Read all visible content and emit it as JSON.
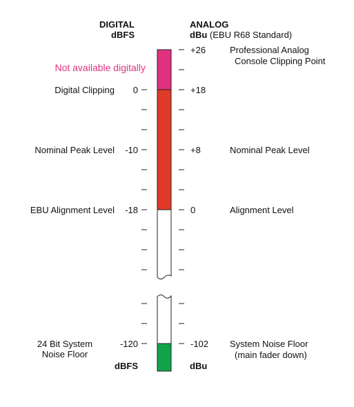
{
  "headers": {
    "digital_title": "DIGITAL",
    "digital_unit": "dBFS",
    "analog_title": "ANALOG",
    "analog_unit": "dBu",
    "analog_standard": "(EBU R68 Standard)"
  },
  "left_labels": {
    "not_available": "Not available digitally",
    "digital_clipping": "Digital Clipping",
    "nominal_peak": "Nominal Peak Level",
    "ebu_alignment": "EBU Alignment Level",
    "noise_floor_line1": "24 Bit System",
    "noise_floor_line2": "Noise Floor"
  },
  "left_ticks": {
    "clip": "0",
    "nominal": "-10",
    "alignment": "-18",
    "floor": "-120"
  },
  "right_ticks": {
    "top": "+26",
    "clip": "+18",
    "nominal": "+8",
    "alignment": "0",
    "floor": "-102"
  },
  "right_labels": {
    "professional_line1": "Professional Analog",
    "professional_line2": "Console Clipping Point",
    "nominal_peak": "Nominal Peak Level",
    "alignment": "Alignment Level",
    "noise_floor_line1": "System Noise Floor",
    "noise_floor_line2": "(main fader down)"
  },
  "footer": {
    "digital_unit": "dBFS",
    "analog_unit": "dBu"
  },
  "colors": {
    "magenta_zone": "#e0317f",
    "red_zone": "#e03b28",
    "green_zone": "#11a34b",
    "outline": "#222222",
    "magenta_text": "#e0317f"
  }
}
